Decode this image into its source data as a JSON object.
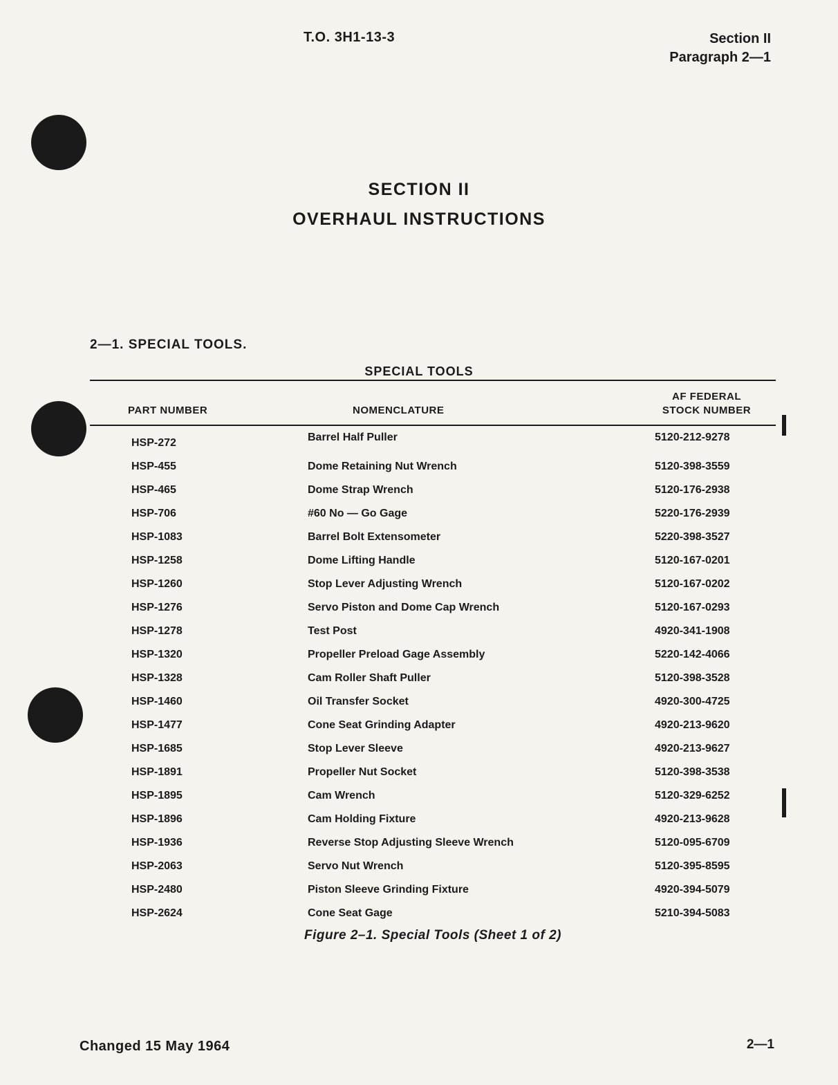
{
  "header": {
    "to_number": "T.O. 3H1-13-3",
    "section_label": "Section II",
    "paragraph_label": "Paragraph 2—1"
  },
  "title": {
    "section": "SECTION II",
    "name": "OVERHAUL INSTRUCTIONS"
  },
  "paragraph_heading": "2—1. SPECIAL TOOLS.",
  "table": {
    "title": "SPECIAL TOOLS",
    "columns": {
      "part": "PART NUMBER",
      "nom": "NOMENCLATURE",
      "stock_l1": "AF FEDERAL",
      "stock_l2": "STOCK NUMBER"
    },
    "rows": [
      {
        "part": "HSP-272",
        "nom": "Barrel Half Puller",
        "stock": "5120-212-9278"
      },
      {
        "part": "HSP-455",
        "nom": "Dome Retaining Nut Wrench",
        "stock": "5120-398-3559"
      },
      {
        "part": "HSP-465",
        "nom": "Dome Strap Wrench",
        "stock": "5120-176-2938"
      },
      {
        "part": "HSP-706",
        "nom": "#60 No — Go Gage",
        "stock": "5220-176-2939"
      },
      {
        "part": "HSP-1083",
        "nom": "Barrel Bolt Extensometer",
        "stock": "5220-398-3527"
      },
      {
        "part": "HSP-1258",
        "nom": "Dome Lifting Handle",
        "stock": "5120-167-0201"
      },
      {
        "part": "HSP-1260",
        "nom": "Stop Lever Adjusting Wrench",
        "stock": "5120-167-0202"
      },
      {
        "part": "HSP-1276",
        "nom": "Servo Piston and Dome Cap Wrench",
        "stock": "5120-167-0293"
      },
      {
        "part": "HSP-1278",
        "nom": "Test Post",
        "stock": "4920-341-1908"
      },
      {
        "part": "HSP-1320",
        "nom": "Propeller Preload Gage Assembly",
        "stock": "5220-142-4066"
      },
      {
        "part": "HSP-1328",
        "nom": "Cam Roller Shaft Puller",
        "stock": "5120-398-3528"
      },
      {
        "part": "HSP-1460",
        "nom": "Oil Transfer Socket",
        "stock": "4920-300-4725"
      },
      {
        "part": "HSP-1477",
        "nom": "Cone Seat Grinding Adapter",
        "stock": "4920-213-9620"
      },
      {
        "part": "HSP-1685",
        "nom": "Stop Lever Sleeve",
        "stock": "4920-213-9627"
      },
      {
        "part": "HSP-1891",
        "nom": "Propeller Nut Socket",
        "stock": "5120-398-3538"
      },
      {
        "part": "HSP-1895",
        "nom": "Cam Wrench",
        "stock": "5120-329-6252"
      },
      {
        "part": "HSP-1896",
        "nom": "Cam Holding Fixture",
        "stock": "4920-213-9628"
      },
      {
        "part": "HSP-1936",
        "nom": "Reverse Stop Adjusting Sleeve Wrench",
        "stock": "5120-095-6709"
      },
      {
        "part": "HSP-2063",
        "nom": "Servo Nut Wrench",
        "stock": "5120-395-8595"
      },
      {
        "part": "HSP-2480",
        "nom": "Piston Sleeve Grinding Fixture",
        "stock": "4920-394-5079"
      },
      {
        "part": "HSP-2624",
        "nom": "Cone Seat Gage",
        "stock": "5210-394-5083"
      }
    ],
    "caption": "Figure 2–1. Special Tools (Sheet 1 of 2)"
  },
  "footer": {
    "changed": "Changed 15 May 1964",
    "page": "2—1"
  }
}
